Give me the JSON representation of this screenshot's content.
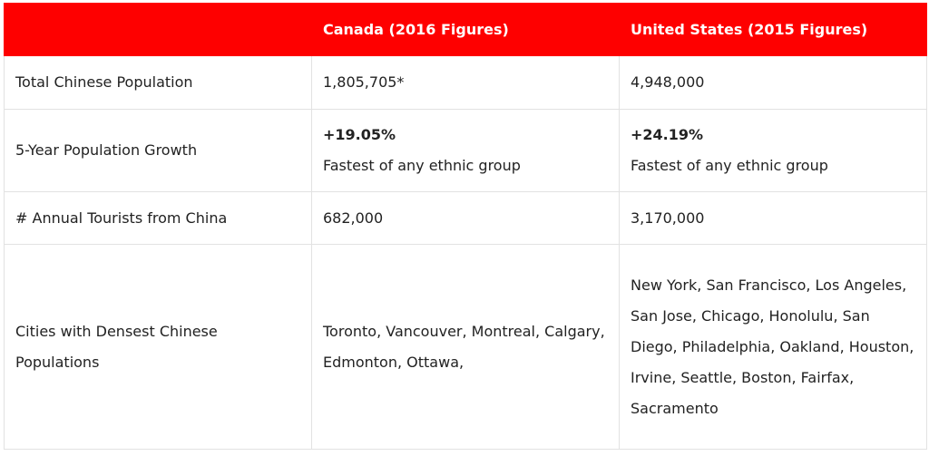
{
  "table": {
    "headers": [
      "",
      "Canada (2016 Figures)",
      "United States (2015 Figures)"
    ],
    "rows": [
      {
        "label": "Total Chinese Population",
        "canada": "1,805,705*",
        "us": "4,948,000"
      },
      {
        "label": "5-Year Population Growth",
        "canada_value": "+19.05%",
        "canada_note": "Fastest of any ethnic group",
        "us_value": "+24.19%",
        "us_note": "Fastest of any ethnic group"
      },
      {
        "label": "# Annual Tourists from China",
        "canada": "682,000",
        "us": "3,170,000"
      },
      {
        "label": "Cities with Densest Chinese Populations",
        "canada": "Toronto, Vancouver, Montreal, Calgary, Edmonton, Ottawa,",
        "us": "New York, San Francisco, Los Angeles, San Jose, Chicago, Honolulu, San Diego, Philadelphia, Oakland, Houston, Irvine, Seattle, Boston, Fairfax, Sacramento"
      }
    ]
  },
  "colors": {
    "header_background": "#fe0000",
    "header_text": "#ffffff",
    "border": "#e2e2e2"
  }
}
